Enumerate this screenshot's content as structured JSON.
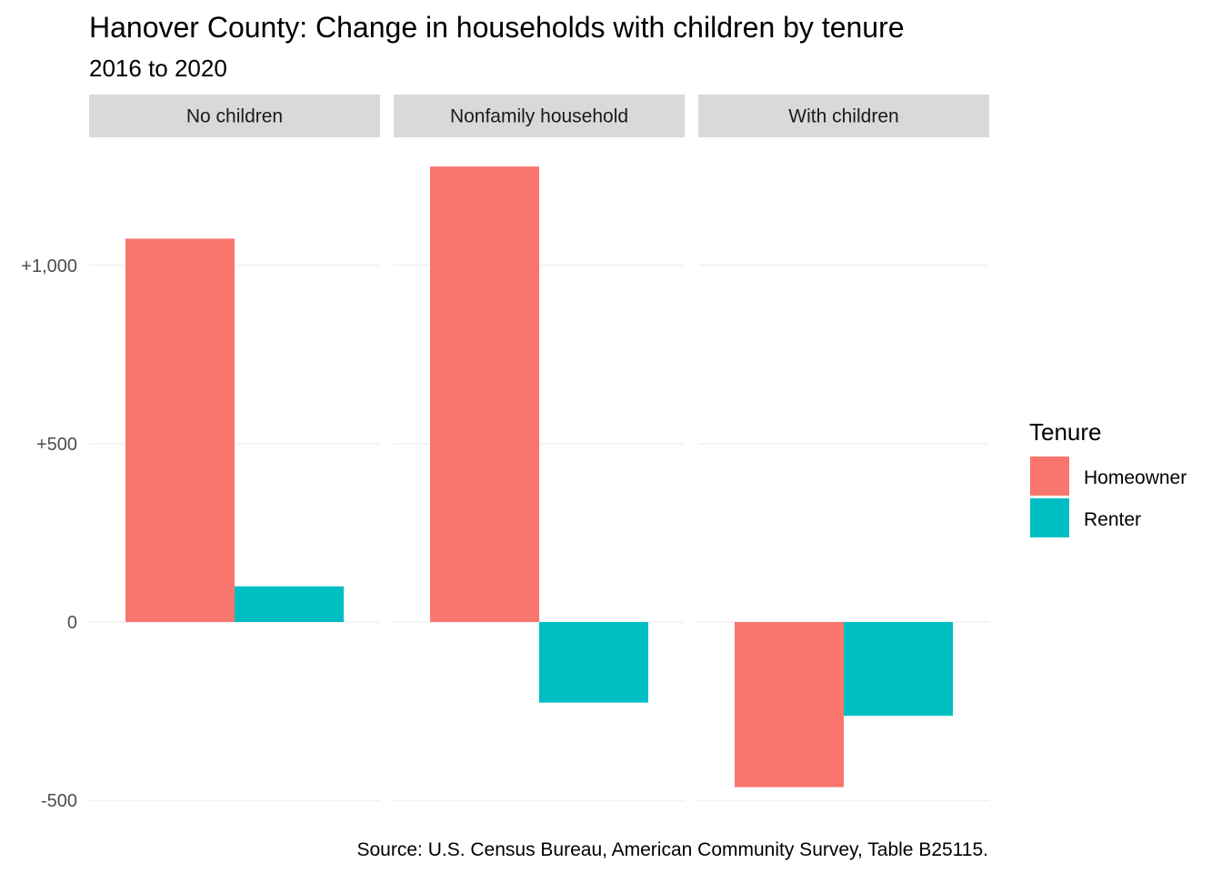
{
  "chart_data": {
    "type": "bar",
    "title": "Hanover County: Change in households with children by tenure",
    "subtitle": "2016 to 2020",
    "caption": "Source: U.S. Census Bureau, American Community Survey, Table B25115.",
    "facets": [
      "No children",
      "Nonfamily household",
      "With children"
    ],
    "series": [
      {
        "name": "Homeowner",
        "color": "#F8766D",
        "values": [
          1075,
          1277,
          -463
        ]
      },
      {
        "name": "Renter",
        "color": "#00BFC4",
        "values": [
          100,
          -226,
          -263
        ]
      }
    ],
    "ylim": [
      -520,
      1300
    ],
    "yticks": [
      {
        "value": -500,
        "label": "-500"
      },
      {
        "value": 0,
        "label": "0"
      },
      {
        "value": 500,
        "label": "+500"
      },
      {
        "value": 1000,
        "label": "+1,000"
      }
    ],
    "legend": {
      "title": "Tenure",
      "position": "right"
    },
    "grid": true,
    "xlabel": "",
    "ylabel": ""
  }
}
